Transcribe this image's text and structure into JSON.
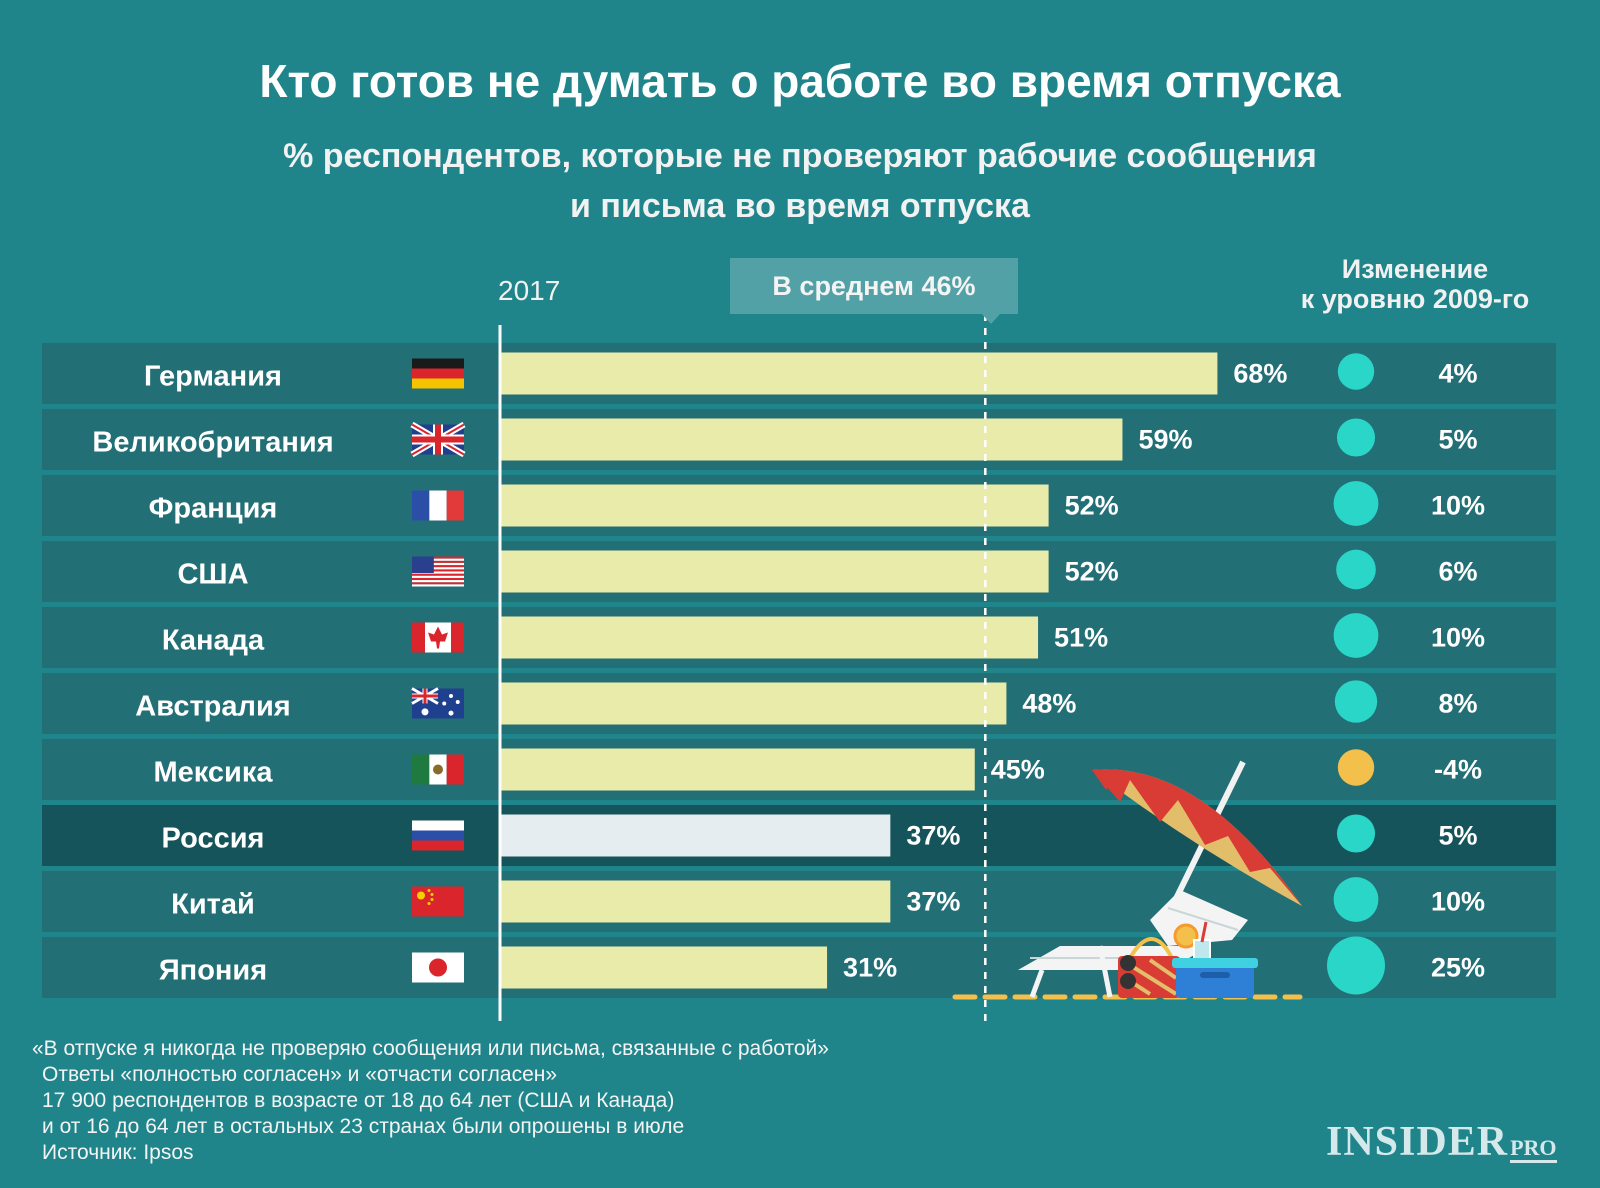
{
  "chart_data": {
    "type": "bar",
    "orientation": "horizontal",
    "title": "Кто готов не думать о работе во время отпуска",
    "subtitle_lines": [
      "% респондентов, которые не проверяют рабочие сообщения",
      "и письма во время отпуска"
    ],
    "year_label": "2017",
    "average_label": "В среднем 46%",
    "average_value": 46,
    "change_header_lines": [
      "Изменение",
      "к уровню 2009-го"
    ],
    "xlim": [
      0,
      100
    ],
    "categories": [
      "Германия",
      "Великобритания",
      "Франция",
      "США",
      "Канада",
      "Австралия",
      "Мексика",
      "Россия",
      "Китай",
      "Япония"
    ],
    "flags": [
      "germany-flag-icon",
      "uk-flag-icon",
      "france-flag-icon",
      "usa-flag-icon",
      "canada-flag-icon",
      "australia-flag-icon",
      "mexico-flag-icon",
      "russia-flag-icon",
      "china-flag-icon",
      "japan-flag-icon"
    ],
    "values": [
      68,
      59,
      52,
      52,
      51,
      48,
      45,
      37,
      37,
      31
    ],
    "value_labels": [
      "68%",
      "59%",
      "52%",
      "52%",
      "51%",
      "48%",
      "45%",
      "37%",
      "37%",
      "31%"
    ],
    "change_values": [
      4,
      5,
      10,
      6,
      10,
      8,
      -4,
      5,
      10,
      25
    ],
    "change_labels": [
      "4%",
      "5%",
      "10%",
      "6%",
      "10%",
      "8%",
      "-4%",
      "5%",
      "10%",
      "25%"
    ],
    "highlight": "Россия",
    "colors": {
      "background": "#1f858b",
      "row": "#236f76",
      "row_highlight": "#15545a",
      "bar": "#e9ebaa",
      "bar_highlight": "#e6edf0",
      "positive_change": "#2ad6c8",
      "negative_change": "#f4c04c"
    }
  },
  "footnote": [
    "«В отпуске я никогда не проверяю сообщения или письма, связанные с работой»",
    "Ответы «полностью согласен» и «отчасти согласен»",
    "17 900 респондентов  в возрасте от 18 до 64 лет (США и Канада)",
    "и от 16 до 64 лет в остальных 23 странах были опрошены в июле",
    "Источник: Ipsos"
  ],
  "logo": {
    "main": "INSIDER",
    "suffix": "PRO"
  },
  "decoration": [
    "beach-umbrella-icon",
    "sun-lounger-icon",
    "beach-bag-icon",
    "sunglasses-icon",
    "cooler-box-icon",
    "cocktail-icon"
  ]
}
